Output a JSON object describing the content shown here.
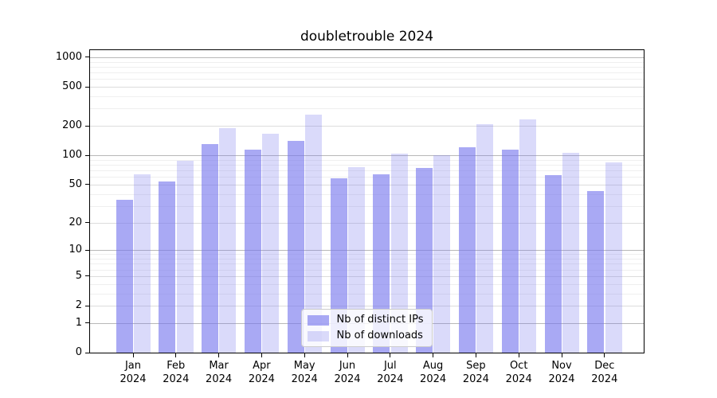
{
  "title": "doubletrouble 2024",
  "chart_data": {
    "type": "bar",
    "title": "doubletrouble 2024",
    "categories": [
      "Jan 2024",
      "Feb 2024",
      "Mar 2024",
      "Apr 2024",
      "May 2024",
      "Jun 2024",
      "Jul 2024",
      "Aug 2024",
      "Sep 2024",
      "Oct 2024",
      "Nov 2024",
      "Dec 2024"
    ],
    "series": [
      {
        "name": "Nb of distinct IPs",
        "color": "rgba(119,119,238,0.63)",
        "values": [
          35,
          54,
          130,
          115,
          140,
          58,
          64,
          74,
          120,
          115,
          63,
          43
        ]
      },
      {
        "name": "Nb of downloads",
        "color": "rgba(119,119,238,0.27)",
        "values": [
          64,
          88,
          190,
          165,
          260,
          76,
          105,
          101,
          208,
          235,
          107,
          85
        ]
      }
    ],
    "xlabel": "",
    "ylabel": "",
    "yscale": "log1p",
    "yticks": [
      1000,
      500,
      200,
      100,
      50,
      20,
      10,
      5,
      2,
      1,
      0
    ],
    "ylim": [
      0,
      1180
    ],
    "grid": true,
    "legend_position": "lower center",
    "colors": {
      "background": "#ffffff",
      "spine": "#000000",
      "grid_major": "#b8b8b8",
      "grid_labeled": "#dcdcdc",
      "grid_minor": "#efefef"
    }
  }
}
